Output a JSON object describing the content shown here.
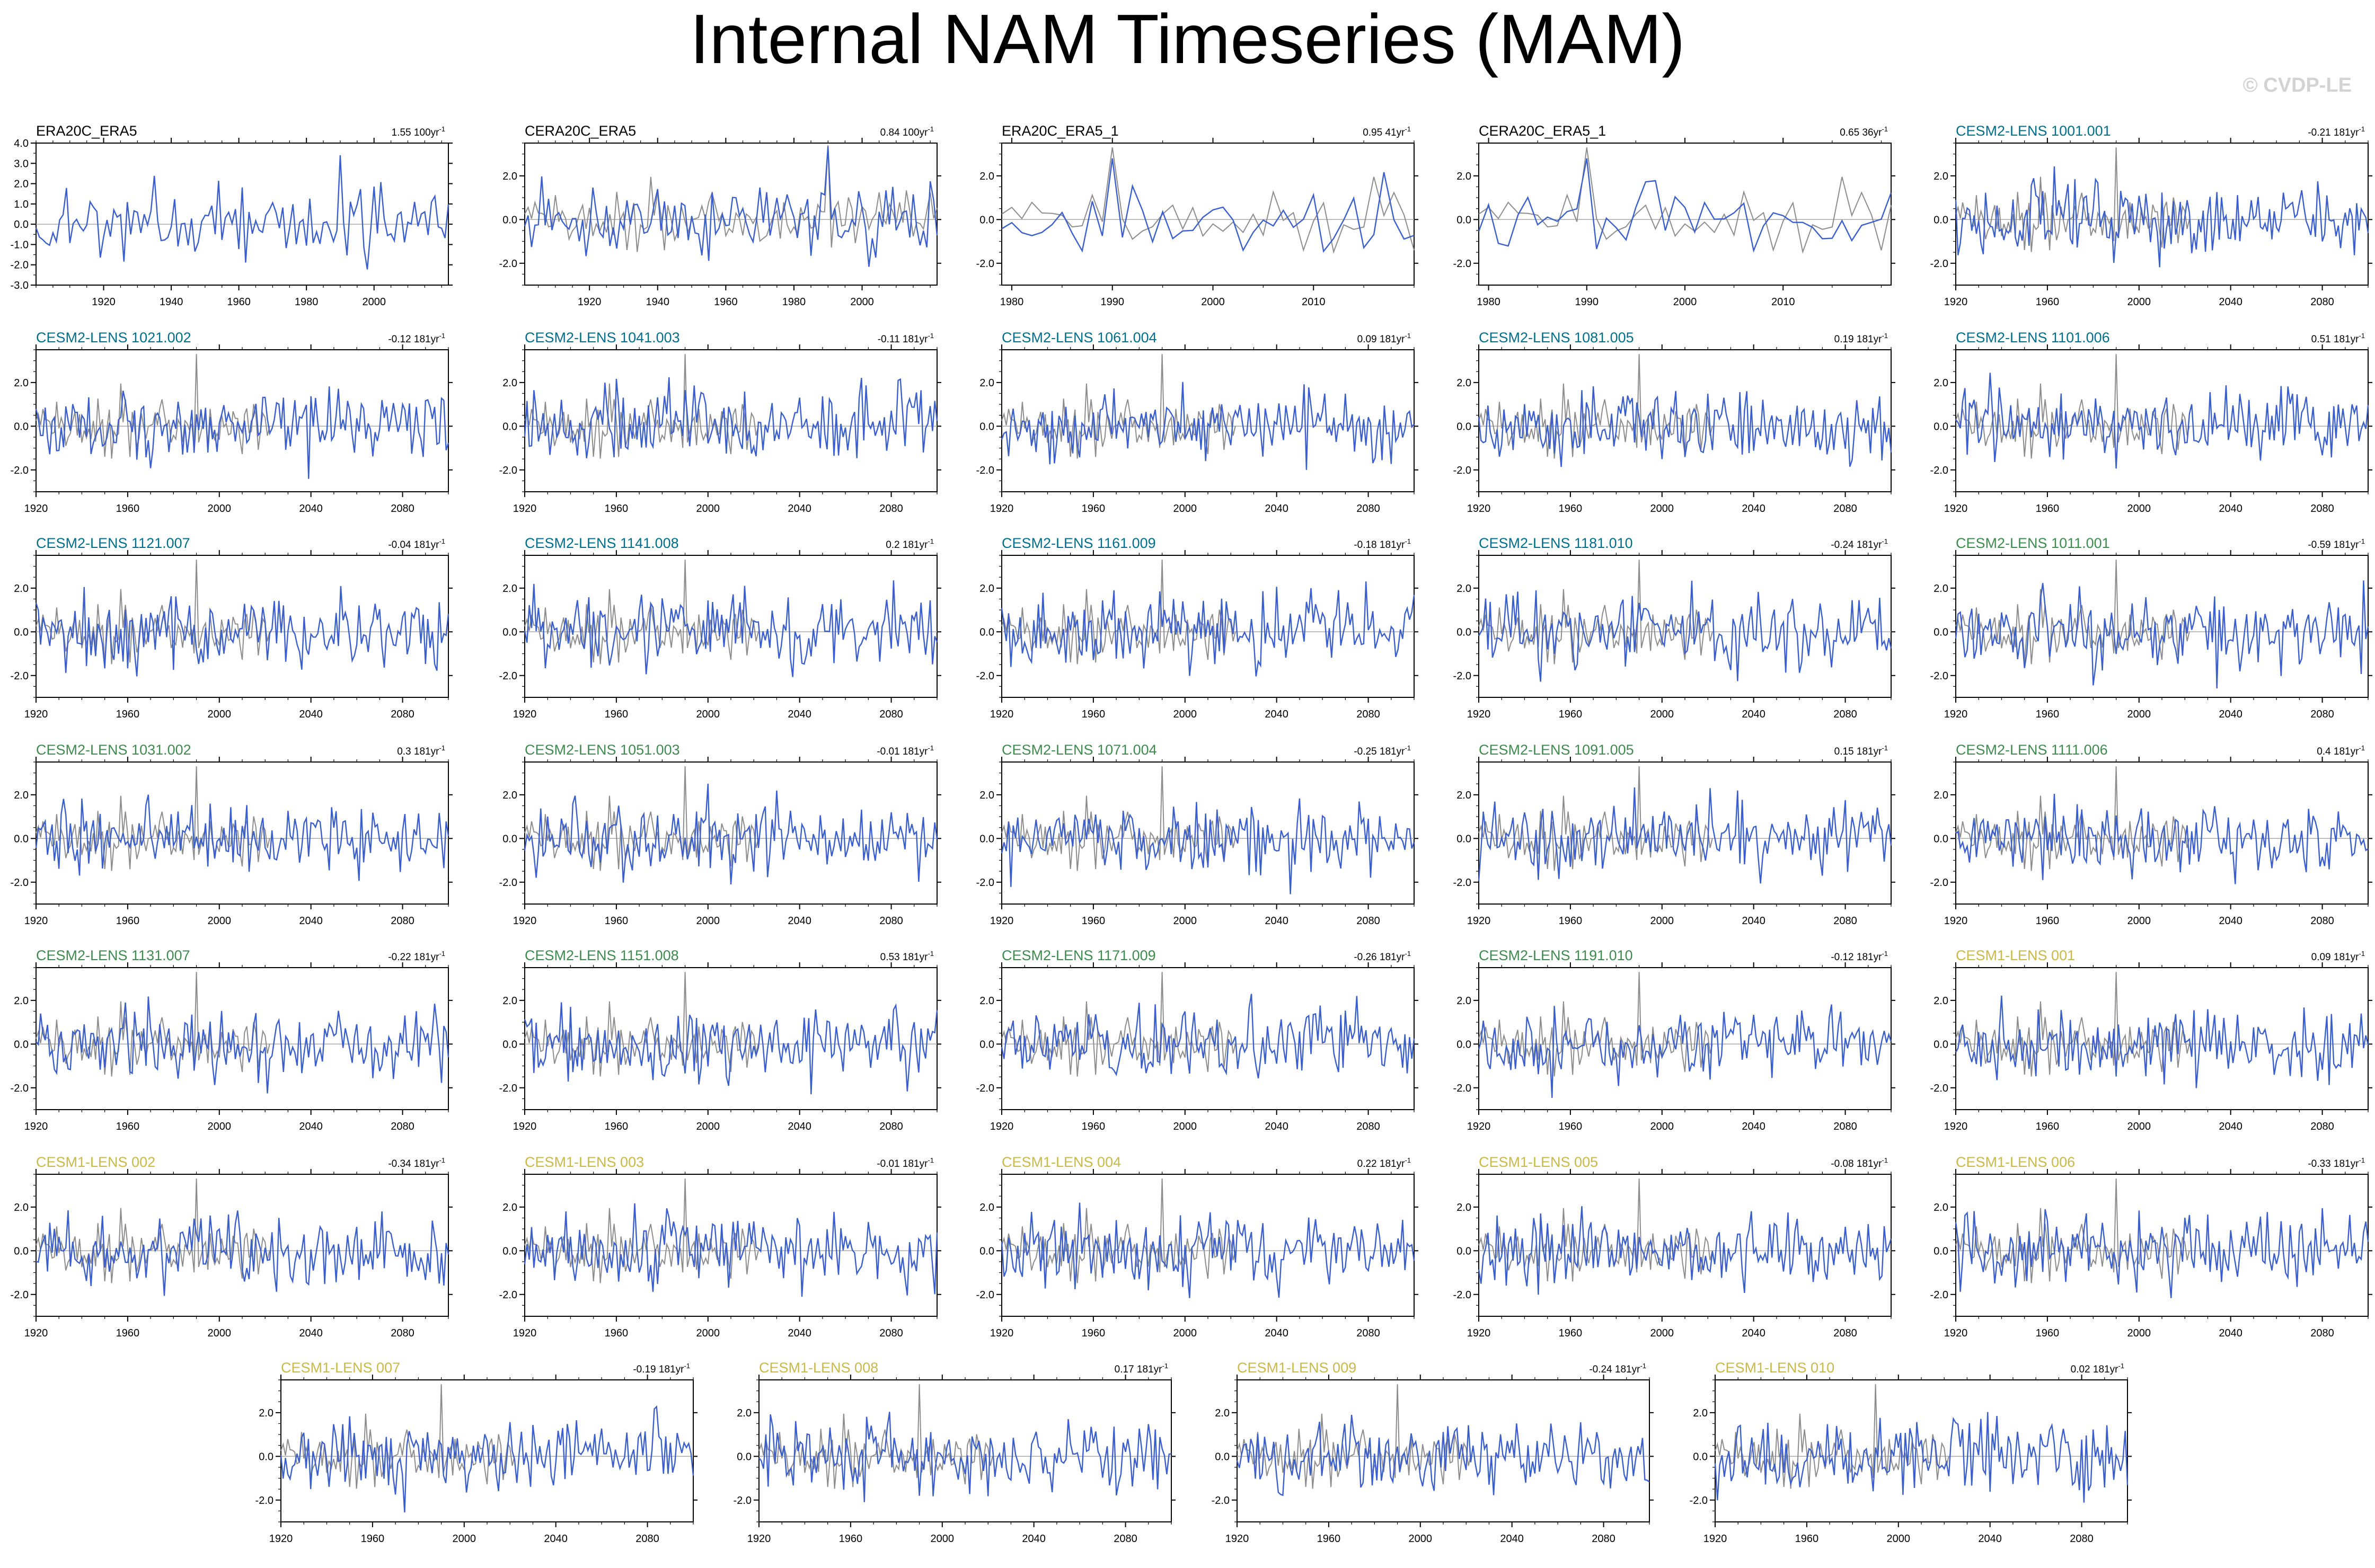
{
  "title": "Internal NAM Timeseries (MAM)",
  "copyright": "© CVDP-LE",
  "colors": {
    "series_line": "#3a5fcd",
    "observed_line": "#8c8c8c",
    "zero_line": "#aaaaaa",
    "label_obs": "#000000",
    "label_cesm2_blue": "#006e8a",
    "label_cesm2_green": "#3f8a4f",
    "label_cesm1": "#c9b84a"
  },
  "chart_data": [
    {
      "type": "line",
      "name": "ERA20C_ERA5",
      "trend": "1.55 100yr",
      "trend_sup": "-1",
      "label_color": "label_obs",
      "x_start": 1900,
      "x_end": 2022,
      "xticks": [
        "1920",
        "1940",
        "1960",
        "1980",
        "2000"
      ],
      "ylim": [
        -3.0,
        4.0
      ],
      "yticks": [
        "4.0",
        "3.0",
        "2.0",
        "1.0",
        "0.0",
        "-1.0",
        "-2.0",
        "-3.0"
      ],
      "ytick_values": [
        4,
        3,
        2,
        1,
        0,
        -1,
        -2,
        -3
      ],
      "observed": false,
      "seed": 11,
      "peak_year": 1990,
      "peak_value": 3.4
    },
    {
      "type": "line",
      "name": "CERA20C_ERA5",
      "trend": "0.84 100yr",
      "trend_sup": "-1",
      "label_color": "label_obs",
      "x_start": 1901,
      "x_end": 2022,
      "xticks": [
        "1920",
        "1940",
        "1960",
        "1980",
        "2000"
      ],
      "ylim": [
        -3.0,
        3.5
      ],
      "yticks": [
        "2.0",
        "0.0",
        "-2.0"
      ],
      "ytick_values": [
        2,
        0,
        -2
      ],
      "observed": true,
      "seed": 12,
      "peak_year": 1990,
      "peak_value": 3.4
    },
    {
      "type": "line",
      "name": "ERA20C_ERA5_1",
      "trend": "0.95 41yr",
      "trend_sup": "-1",
      "label_color": "label_obs",
      "x_start": 1979,
      "x_end": 2020,
      "xticks": [
        "1980",
        "1990",
        "2000",
        "2010"
      ],
      "ylim": [
        -3.0,
        3.5
      ],
      "yticks": [
        "2.0",
        "0.0",
        "-2.0"
      ],
      "ytick_values": [
        2,
        0,
        -2
      ],
      "observed": true,
      "seed": 13,
      "peak_year": 1990,
      "peak_value": 3.3
    },
    {
      "type": "line",
      "name": "CERA20C_ERA5_1",
      "trend": "0.65 36yr",
      "trend_sup": "-1",
      "label_color": "label_obs",
      "x_start": 1979,
      "x_end": 2021,
      "xticks": [
        "1980",
        "1990",
        "2000",
        "2010"
      ],
      "ylim": [
        -3.0,
        3.5
      ],
      "yticks": [
        "2.0",
        "0.0",
        "-2.0"
      ],
      "ytick_values": [
        2,
        0,
        -2
      ],
      "observed": true,
      "seed": 14,
      "peak_year": 1990,
      "peak_value": 3.3
    },
    {
      "type": "line",
      "name": "CESM2-LENS 1001.001",
      "trend": "-0.21 181yr",
      "trend_sup": "-1",
      "label_color": "label_cesm2_blue",
      "x_start": 1920,
      "x_end": 2100,
      "xticks": [
        "1920",
        "1960",
        "2000",
        "2040",
        "2080"
      ],
      "ylim": [
        -3.0,
        3.5
      ],
      "yticks": [
        "2.0",
        "0.0",
        "-2.0"
      ],
      "ytick_values": [
        2,
        0,
        -2
      ],
      "observed": true,
      "seed": 21
    },
    {
      "type": "line",
      "name": "CESM2-LENS 1021.002",
      "trend": "-0.12 181yr",
      "trend_sup": "-1",
      "label_color": "label_cesm2_blue",
      "x_start": 1920,
      "x_end": 2100,
      "xticks": [
        "1920",
        "1960",
        "2000",
        "2040",
        "2080"
      ],
      "ylim": [
        -3.0,
        3.5
      ],
      "yticks": [
        "2.0",
        "0.0",
        "-2.0"
      ],
      "ytick_values": [
        2,
        0,
        -2
      ],
      "observed": true,
      "seed": 22
    },
    {
      "type": "line",
      "name": "CESM2-LENS 1041.003",
      "trend": "-0.11 181yr",
      "trend_sup": "-1",
      "label_color": "label_cesm2_blue",
      "x_start": 1920,
      "x_end": 2100,
      "xticks": [
        "1920",
        "1960",
        "2000",
        "2040",
        "2080"
      ],
      "ylim": [
        -3.0,
        3.5
      ],
      "yticks": [
        "2.0",
        "0.0",
        "-2.0"
      ],
      "ytick_values": [
        2,
        0,
        -2
      ],
      "observed": true,
      "seed": 23
    },
    {
      "type": "line",
      "name": "CESM2-LENS 1061.004",
      "trend": "0.09 181yr",
      "trend_sup": "-1",
      "label_color": "label_cesm2_blue",
      "x_start": 1920,
      "x_end": 2100,
      "xticks": [
        "1920",
        "1960",
        "2000",
        "2040",
        "2080"
      ],
      "ylim": [
        -3.0,
        3.5
      ],
      "yticks": [
        "2.0",
        "0.0",
        "-2.0"
      ],
      "ytick_values": [
        2,
        0,
        -2
      ],
      "observed": true,
      "seed": 24
    },
    {
      "type": "line",
      "name": "CESM2-LENS 1081.005",
      "trend": "0.19 181yr",
      "trend_sup": "-1",
      "label_color": "label_cesm2_blue",
      "x_start": 1920,
      "x_end": 2100,
      "xticks": [
        "1920",
        "1960",
        "2000",
        "2040",
        "2080"
      ],
      "ylim": [
        -3.0,
        3.5
      ],
      "yticks": [
        "2.0",
        "0.0",
        "-2.0"
      ],
      "ytick_values": [
        2,
        0,
        -2
      ],
      "observed": true,
      "seed": 25
    },
    {
      "type": "line",
      "name": "CESM2-LENS 1101.006",
      "trend": "0.51 181yr",
      "trend_sup": "-1",
      "label_color": "label_cesm2_blue",
      "x_start": 1920,
      "x_end": 2100,
      "xticks": [
        "1920",
        "1960",
        "2000",
        "2040",
        "2080"
      ],
      "ylim": [
        -3.0,
        3.5
      ],
      "yticks": [
        "2.0",
        "0.0",
        "-2.0"
      ],
      "ytick_values": [
        2,
        0,
        -2
      ],
      "observed": true,
      "seed": 26
    },
    {
      "type": "line",
      "name": "CESM2-LENS 1121.007",
      "trend": "-0.04 181yr",
      "trend_sup": "-1",
      "label_color": "label_cesm2_blue",
      "x_start": 1920,
      "x_end": 2100,
      "xticks": [
        "1920",
        "1960",
        "2000",
        "2040",
        "2080"
      ],
      "ylim": [
        -3.0,
        3.5
      ],
      "yticks": [
        "2.0",
        "0.0",
        "-2.0"
      ],
      "ytick_values": [
        2,
        0,
        -2
      ],
      "observed": true,
      "seed": 27
    },
    {
      "type": "line",
      "name": "CESM2-LENS 1141.008",
      "trend": "0.2 181yr",
      "trend_sup": "-1",
      "label_color": "label_cesm2_blue",
      "x_start": 1920,
      "x_end": 2100,
      "xticks": [
        "1920",
        "1960",
        "2000",
        "2040",
        "2080"
      ],
      "ylim": [
        -3.0,
        3.5
      ],
      "yticks": [
        "2.0",
        "0.0",
        "-2.0"
      ],
      "ytick_values": [
        2,
        0,
        -2
      ],
      "observed": true,
      "seed": 28
    },
    {
      "type": "line",
      "name": "CESM2-LENS 1161.009",
      "trend": "-0.18 181yr",
      "trend_sup": "-1",
      "label_color": "label_cesm2_blue",
      "x_start": 1920,
      "x_end": 2100,
      "xticks": [
        "1920",
        "1960",
        "2000",
        "2040",
        "2080"
      ],
      "ylim": [
        -3.0,
        3.5
      ],
      "yticks": [
        "2.0",
        "0.0",
        "-2.0"
      ],
      "ytick_values": [
        2,
        0,
        -2
      ],
      "observed": true,
      "seed": 29
    },
    {
      "type": "line",
      "name": "CESM2-LENS 1181.010",
      "trend": "-0.24 181yr",
      "trend_sup": "-1",
      "label_color": "label_cesm2_blue",
      "x_start": 1920,
      "x_end": 2100,
      "xticks": [
        "1920",
        "1960",
        "2000",
        "2040",
        "2080"
      ],
      "ylim": [
        -3.0,
        3.5
      ],
      "yticks": [
        "2.0",
        "0.0",
        "-2.0"
      ],
      "ytick_values": [
        2,
        0,
        -2
      ],
      "observed": true,
      "seed": 30
    },
    {
      "type": "line",
      "name": "CESM2-LENS 1011.001",
      "trend": "-0.59 181yr",
      "trend_sup": "-1",
      "label_color": "label_cesm2_green",
      "x_start": 1920,
      "x_end": 2100,
      "xticks": [
        "1920",
        "1960",
        "2000",
        "2040",
        "2080"
      ],
      "ylim": [
        -3.0,
        3.5
      ],
      "yticks": [
        "2.0",
        "0.0",
        "-2.0"
      ],
      "ytick_values": [
        2,
        0,
        -2
      ],
      "observed": true,
      "seed": 31
    },
    {
      "type": "line",
      "name": "CESM2-LENS 1031.002",
      "trend": "0.3 181yr",
      "trend_sup": "-1",
      "label_color": "label_cesm2_green",
      "x_start": 1920,
      "x_end": 2100,
      "xticks": [
        "1920",
        "1960",
        "2000",
        "2040",
        "2080"
      ],
      "ylim": [
        -3.0,
        3.5
      ],
      "yticks": [
        "2.0",
        "0.0",
        "-2.0"
      ],
      "ytick_values": [
        2,
        0,
        -2
      ],
      "observed": true,
      "seed": 32
    },
    {
      "type": "line",
      "name": "CESM2-LENS 1051.003",
      "trend": "-0.01 181yr",
      "trend_sup": "-1",
      "label_color": "label_cesm2_green",
      "x_start": 1920,
      "x_end": 2100,
      "xticks": [
        "1920",
        "1960",
        "2000",
        "2040",
        "2080"
      ],
      "ylim": [
        -3.0,
        3.5
      ],
      "yticks": [
        "2.0",
        "0.0",
        "-2.0"
      ],
      "ytick_values": [
        2,
        0,
        -2
      ],
      "observed": true,
      "seed": 33
    },
    {
      "type": "line",
      "name": "CESM2-LENS 1071.004",
      "trend": "-0.25 181yr",
      "trend_sup": "-1",
      "label_color": "label_cesm2_green",
      "x_start": 1920,
      "x_end": 2100,
      "xticks": [
        "1920",
        "1960",
        "2000",
        "2040",
        "2080"
      ],
      "ylim": [
        -3.0,
        3.5
      ],
      "yticks": [
        "2.0",
        "0.0",
        "-2.0"
      ],
      "ytick_values": [
        2,
        0,
        -2
      ],
      "observed": true,
      "seed": 34
    },
    {
      "type": "line",
      "name": "CESM2-LENS 1091.005",
      "trend": "0.15 181yr",
      "trend_sup": "-1",
      "label_color": "label_cesm2_green",
      "x_start": 1920,
      "x_end": 2100,
      "xticks": [
        "1920",
        "1960",
        "2000",
        "2040",
        "2080"
      ],
      "ylim": [
        -3.0,
        3.5
      ],
      "yticks": [
        "2.0",
        "0.0",
        "-2.0"
      ],
      "ytick_values": [
        2,
        0,
        -2
      ],
      "observed": true,
      "seed": 35
    },
    {
      "type": "line",
      "name": "CESM2-LENS 1111.006",
      "trend": "0.4 181yr",
      "trend_sup": "-1",
      "label_color": "label_cesm2_green",
      "x_start": 1920,
      "x_end": 2100,
      "xticks": [
        "1920",
        "1960",
        "2000",
        "2040",
        "2080"
      ],
      "ylim": [
        -3.0,
        3.5
      ],
      "yticks": [
        "2.0",
        "0.0",
        "-2.0"
      ],
      "ytick_values": [
        2,
        0,
        -2
      ],
      "observed": true,
      "seed": 36
    },
    {
      "type": "line",
      "name": "CESM2-LENS 1131.007",
      "trend": "-0.22 181yr",
      "trend_sup": "-1",
      "label_color": "label_cesm2_green",
      "x_start": 1920,
      "x_end": 2100,
      "xticks": [
        "1920",
        "1960",
        "2000",
        "2040",
        "2080"
      ],
      "ylim": [
        -3.0,
        3.5
      ],
      "yticks": [
        "2.0",
        "0.0",
        "-2.0"
      ],
      "ytick_values": [
        2,
        0,
        -2
      ],
      "observed": true,
      "seed": 37
    },
    {
      "type": "line",
      "name": "CESM2-LENS 1151.008",
      "trend": "0.53 181yr",
      "trend_sup": "-1",
      "label_color": "label_cesm2_green",
      "x_start": 1920,
      "x_end": 2100,
      "xticks": [
        "1920",
        "1960",
        "2000",
        "2040",
        "2080"
      ],
      "ylim": [
        -3.0,
        3.5
      ],
      "yticks": [
        "2.0",
        "0.0",
        "-2.0"
      ],
      "ytick_values": [
        2,
        0,
        -2
      ],
      "observed": true,
      "seed": 38
    },
    {
      "type": "line",
      "name": "CESM2-LENS 1171.009",
      "trend": "-0.26 181yr",
      "trend_sup": "-1",
      "label_color": "label_cesm2_green",
      "x_start": 1920,
      "x_end": 2100,
      "xticks": [
        "1920",
        "1960",
        "2000",
        "2040",
        "2080"
      ],
      "ylim": [
        -3.0,
        3.5
      ],
      "yticks": [
        "2.0",
        "0.0",
        "-2.0"
      ],
      "ytick_values": [
        2,
        0,
        -2
      ],
      "observed": true,
      "seed": 39
    },
    {
      "type": "line",
      "name": "CESM2-LENS 1191.010",
      "trend": "-0.12 181yr",
      "trend_sup": "-1",
      "label_color": "label_cesm2_green",
      "x_start": 1920,
      "x_end": 2100,
      "xticks": [
        "1920",
        "1960",
        "2000",
        "2040",
        "2080"
      ],
      "ylim": [
        -3.0,
        3.5
      ],
      "yticks": [
        "2.0",
        "0.0",
        "-2.0"
      ],
      "ytick_values": [
        2,
        0,
        -2
      ],
      "observed": true,
      "seed": 40
    },
    {
      "type": "line",
      "name": "CESM1-LENS 001",
      "trend": "0.09 181yr",
      "trend_sup": "-1",
      "label_color": "label_cesm1",
      "x_start": 1920,
      "x_end": 2100,
      "xticks": [
        "1920",
        "1960",
        "2000",
        "2040",
        "2080"
      ],
      "ylim": [
        -3.0,
        3.5
      ],
      "yticks": [
        "2.0",
        "0.0",
        "-2.0"
      ],
      "ytick_values": [
        2,
        0,
        -2
      ],
      "observed": true,
      "seed": 41
    },
    {
      "type": "line",
      "name": "CESM1-LENS 002",
      "trend": "-0.34 181yr",
      "trend_sup": "-1",
      "label_color": "label_cesm1",
      "x_start": 1920,
      "x_end": 2100,
      "xticks": [
        "1920",
        "1960",
        "2000",
        "2040",
        "2080"
      ],
      "ylim": [
        -3.0,
        3.5
      ],
      "yticks": [
        "2.0",
        "0.0",
        "-2.0"
      ],
      "ytick_values": [
        2,
        0,
        -2
      ],
      "observed": true,
      "seed": 42
    },
    {
      "type": "line",
      "name": "CESM1-LENS 003",
      "trend": "-0.01 181yr",
      "trend_sup": "-1",
      "label_color": "label_cesm1",
      "x_start": 1920,
      "x_end": 2100,
      "xticks": [
        "1920",
        "1960",
        "2000",
        "2040",
        "2080"
      ],
      "ylim": [
        -3.0,
        3.5
      ],
      "yticks": [
        "2.0",
        "0.0",
        "-2.0"
      ],
      "ytick_values": [
        2,
        0,
        -2
      ],
      "observed": true,
      "seed": 43
    },
    {
      "type": "line",
      "name": "CESM1-LENS 004",
      "trend": "0.22 181yr",
      "trend_sup": "-1",
      "label_color": "label_cesm1",
      "x_start": 1920,
      "x_end": 2100,
      "xticks": [
        "1920",
        "1960",
        "2000",
        "2040",
        "2080"
      ],
      "ylim": [
        -3.0,
        3.5
      ],
      "yticks": [
        "2.0",
        "0.0",
        "-2.0"
      ],
      "ytick_values": [
        2,
        0,
        -2
      ],
      "observed": true,
      "seed": 44
    },
    {
      "type": "line",
      "name": "CESM1-LENS 005",
      "trend": "-0.08 181yr",
      "trend_sup": "-1",
      "label_color": "label_cesm1",
      "x_start": 1920,
      "x_end": 2100,
      "xticks": [
        "1920",
        "1960",
        "2000",
        "2040",
        "2080"
      ],
      "ylim": [
        -3.0,
        3.5
      ],
      "yticks": [
        "2.0",
        "0.0",
        "-2.0"
      ],
      "ytick_values": [
        2,
        0,
        -2
      ],
      "observed": true,
      "seed": 45
    },
    {
      "type": "line",
      "name": "CESM1-LENS 006",
      "trend": "-0.33 181yr",
      "trend_sup": "-1",
      "label_color": "label_cesm1",
      "x_start": 1920,
      "x_end": 2100,
      "xticks": [
        "1920",
        "1960",
        "2000",
        "2040",
        "2080"
      ],
      "ylim": [
        -3.0,
        3.5
      ],
      "yticks": [
        "2.0",
        "0.0",
        "-2.0"
      ],
      "ytick_values": [
        2,
        0,
        -2
      ],
      "observed": true,
      "seed": 46
    },
    {
      "type": "line",
      "name": "CESM1-LENS 007",
      "trend": "-0.19 181yr",
      "trend_sup": "-1",
      "label_color": "label_cesm1",
      "x_start": 1920,
      "x_end": 2100,
      "xticks": [
        "1920",
        "1960",
        "2000",
        "2040",
        "2080"
      ],
      "ylim": [
        -3.0,
        3.5
      ],
      "yticks": [
        "2.0",
        "0.0",
        "-2.0"
      ],
      "ytick_values": [
        2,
        0,
        -2
      ],
      "observed": true,
      "seed": 47
    },
    {
      "type": "line",
      "name": "CESM1-LENS 008",
      "trend": "0.17 181yr",
      "trend_sup": "-1",
      "label_color": "label_cesm1",
      "x_start": 1920,
      "x_end": 2100,
      "xticks": [
        "1920",
        "1960",
        "2000",
        "2040",
        "2080"
      ],
      "ylim": [
        -3.0,
        3.5
      ],
      "yticks": [
        "2.0",
        "0.0",
        "-2.0"
      ],
      "ytick_values": [
        2,
        0,
        -2
      ],
      "observed": true,
      "seed": 48
    },
    {
      "type": "line",
      "name": "CESM1-LENS 009",
      "trend": "-0.24 181yr",
      "trend_sup": "-1",
      "label_color": "label_cesm1",
      "x_start": 1920,
      "x_end": 2100,
      "xticks": [
        "1920",
        "1960",
        "2000",
        "2040",
        "2080"
      ],
      "ylim": [
        -3.0,
        3.5
      ],
      "yticks": [
        "2.0",
        "0.0",
        "-2.0"
      ],
      "ytick_values": [
        2,
        0,
        -2
      ],
      "observed": true,
      "seed": 49
    },
    {
      "type": "line",
      "name": "CESM1-LENS 010",
      "trend": "0.02 181yr",
      "trend_sup": "-1",
      "label_color": "label_cesm1",
      "x_start": 1920,
      "x_end": 2100,
      "xticks": [
        "1920",
        "1960",
        "2000",
        "2040",
        "2080"
      ],
      "ylim": [
        -3.0,
        3.5
      ],
      "yticks": [
        "2.0",
        "0.0",
        "-2.0"
      ],
      "ytick_values": [
        2,
        0,
        -2
      ],
      "observed": true,
      "seed": 50
    }
  ]
}
